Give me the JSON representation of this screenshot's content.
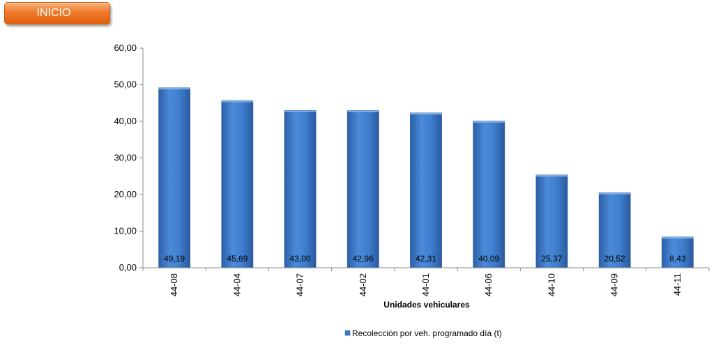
{
  "header": {
    "inicio_label": "INICIO"
  },
  "chart_data": {
    "type": "bar",
    "categories": [
      "44-08",
      "44-04",
      "44-07",
      "44-02",
      "44-01",
      "44-06",
      "44-10",
      "44-09",
      "44-11"
    ],
    "series": [
      {
        "name": "Recolección por veh. programado día (t)",
        "values": [
          49.19,
          45.69,
          43.0,
          42.96,
          42.31,
          40.09,
          25.37,
          20.52,
          8.43
        ],
        "value_labels": [
          "49,19",
          "45,69",
          "43,00",
          "42,96",
          "42,31",
          "40,09",
          "25,37",
          "20,52",
          "8,43"
        ]
      }
    ],
    "title": "",
    "xlabel": "Unidades vehiculares",
    "ylabel": "",
    "ylim": [
      0,
      60
    ],
    "yticks": [
      0,
      10,
      20,
      30,
      40,
      50,
      60
    ],
    "ytick_labels": [
      "0,00",
      "10,00",
      "20,00",
      "30,00",
      "40,00",
      "50,00",
      "60,00"
    ],
    "grid": false,
    "legend_position": "bottom",
    "bar_color": "#3b78c9"
  }
}
